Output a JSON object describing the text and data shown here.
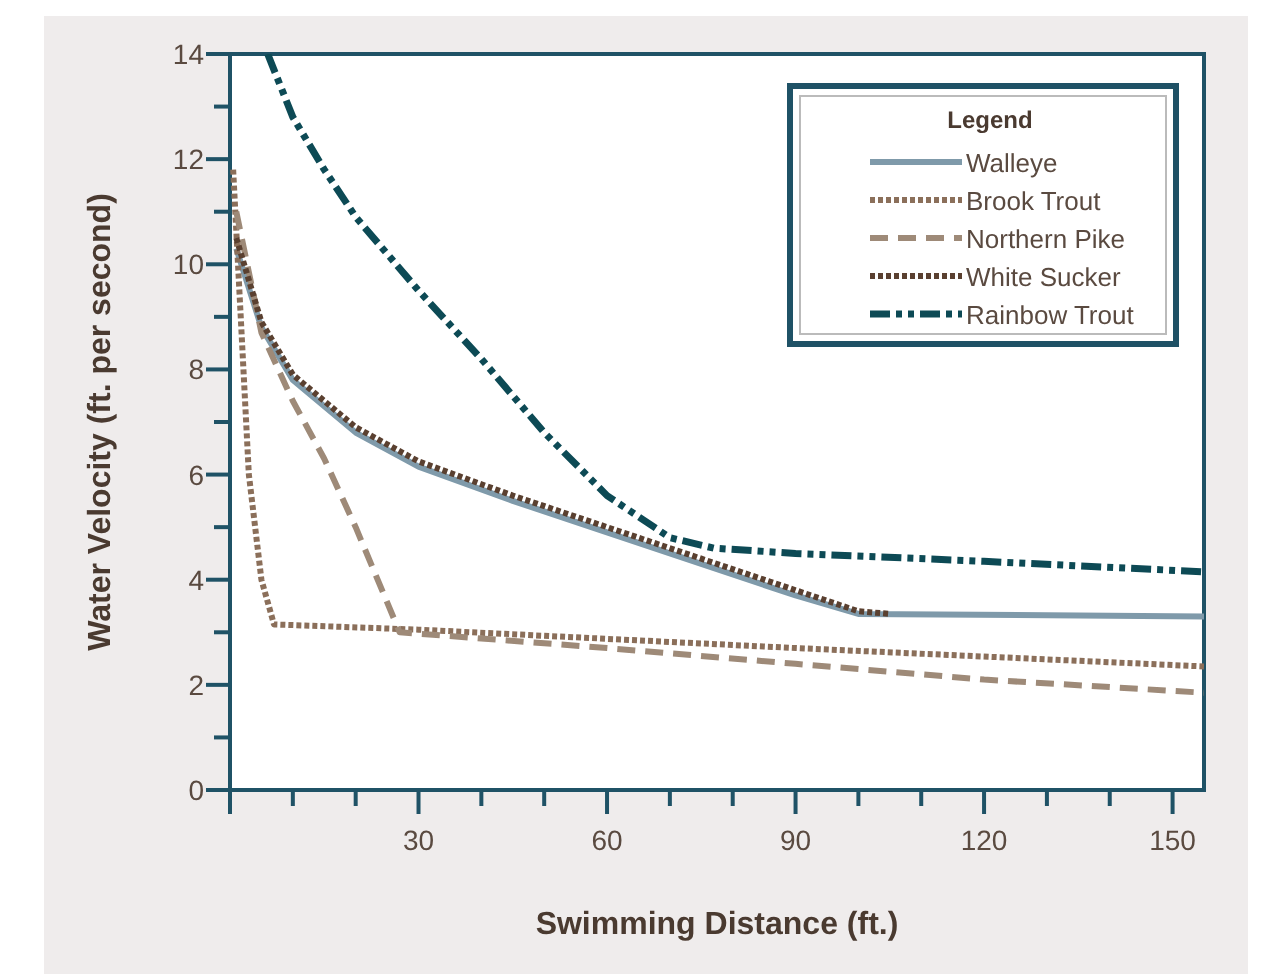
{
  "chart_data": {
    "type": "line",
    "xlabel": "Swimming Distance (ft.)",
    "ylabel": "Water Velocity (ft. per second)",
    "legend_title": "Legend",
    "legend": "top right",
    "grid": false,
    "marker": "none",
    "xlim": [
      0,
      155
    ],
    "ylim": [
      0,
      14
    ],
    "xticks": [
      {
        "value": 0,
        "label": null
      },
      {
        "value": 10,
        "label": null
      },
      {
        "value": 20,
        "label": null
      },
      30,
      {
        "value": 40,
        "label": null
      },
      {
        "value": 50,
        "label": null
      },
      60,
      {
        "value": 70,
        "label": null
      },
      {
        "value": 80,
        "label": null
      },
      90,
      {
        "value": 100,
        "label": null
      },
      {
        "value": 110,
        "label": null
      },
      120,
      {
        "value": 130,
        "label": null
      },
      {
        "value": 140,
        "label": null
      },
      150
    ],
    "yticks": [
      0,
      {
        "value": 1,
        "label": null
      },
      2,
      {
        "value": 3,
        "label": null
      },
      4,
      {
        "value": 5,
        "label": null
      },
      6,
      {
        "value": 7,
        "label": null
      },
      8,
      {
        "value": 9,
        "label": null
      },
      10,
      {
        "value": 11,
        "label": null
      },
      12,
      {
        "value": 13,
        "label": null
      },
      14
    ],
    "series": [
      {
        "name": "Walleye",
        "color": "#7f9aaa",
        "line_style": "solid",
        "x": [
          1,
          5,
          10,
          20,
          30,
          45,
          60,
          75,
          90,
          100,
          155
        ],
        "values": [
          10.3,
          8.8,
          7.8,
          6.8,
          6.15,
          5.5,
          4.9,
          4.3,
          3.7,
          3.35,
          3.3
        ]
      },
      {
        "name": "Brook Trout",
        "color": "#8b6f5a",
        "line_style": "dotted",
        "x": [
          0.5,
          3,
          5,
          7,
          30,
          90,
          155
        ],
        "values": [
          11.8,
          6,
          4,
          3.15,
          3.05,
          2.7,
          2.35
        ]
      },
      {
        "name": "Northern Pike",
        "color": "#9e8a78",
        "line_style": "dashed",
        "x": [
          1,
          5,
          10,
          15,
          20,
          27,
          60,
          90,
          120,
          155
        ],
        "values": [
          11,
          8.7,
          7.4,
          6.3,
          5,
          3,
          2.7,
          2.4,
          2.1,
          1.85
        ]
      },
      {
        "name": "White Sucker",
        "color": "#5a4030",
        "line_style": "dotted",
        "x": [
          1,
          5,
          10,
          20,
          30,
          45,
          60,
          75,
          90,
          100,
          105
        ],
        "values": [
          10.5,
          8.9,
          7.9,
          6.9,
          6.25,
          5.6,
          5,
          4.4,
          3.8,
          3.4,
          3.35
        ]
      },
      {
        "name": "Rainbow Trout",
        "color": "#0d4a55",
        "line_style": "dashdot",
        "x": [
          6,
          10,
          15,
          20,
          30,
          40,
          50,
          60,
          70,
          77,
          90,
          120,
          155
        ],
        "values": [
          14,
          12.8,
          11.8,
          10.9,
          9.5,
          8.2,
          6.8,
          5.6,
          4.8,
          4.6,
          4.5,
          4.35,
          4.15
        ]
      }
    ]
  }
}
